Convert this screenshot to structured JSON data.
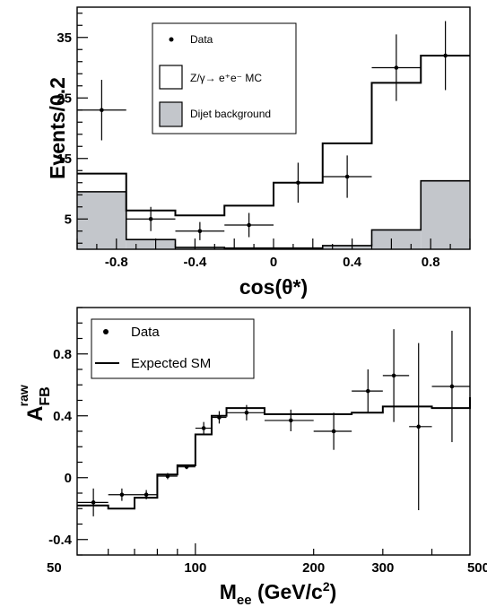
{
  "chart_data": [
    {
      "type": "histogram",
      "xlabel": "cos(θ*)",
      "ylabel": "Events/0.2",
      "xlim": [
        -1,
        1
      ],
      "ylim": [
        0,
        40
      ],
      "x_ticks": [
        "-0.8",
        "-0.4",
        "0",
        "0.4",
        "0.8"
      ],
      "y_ticks": [
        "5",
        "15",
        "25",
        "35"
      ],
      "bin_edges": [
        -1.0,
        -0.75,
        -0.5,
        -0.25,
        0.0,
        0.25,
        0.5,
        0.75,
        1.0
      ],
      "legend": {
        "data": "Data",
        "mc": "Z/γ→ e⁺e⁻ MC",
        "background": "Dijet background"
      },
      "series": [
        {
          "name": "Dijet background",
          "kind": "filled-step",
          "values": [
            9.5,
            1.6,
            0.3,
            0.2,
            0.2,
            0.6,
            3.2,
            11.3
          ]
        },
        {
          "name": "Z/γ→ e⁺e⁻ MC",
          "kind": "step",
          "values": [
            12.5,
            6.4,
            5.6,
            7.2,
            11.0,
            17.5,
            27.5,
            32.0
          ]
        },
        {
          "name": "Data",
          "kind": "points",
          "points": [
            {
              "x": -0.875,
              "y": 23,
              "err": 5
            },
            {
              "x": -0.625,
              "y": 5,
              "err": 2
            },
            {
              "x": -0.375,
              "y": 3,
              "err": 1.5
            },
            {
              "x": -0.125,
              "y": 4,
              "err": 2
            },
            {
              "x": 0.125,
              "y": 11,
              "err": 3.3
            },
            {
              "x": 0.375,
              "y": 12,
              "err": 3.5
            },
            {
              "x": 0.625,
              "y": 30,
              "err": 5.5
            },
            {
              "x": 0.875,
              "y": 32,
              "err": 5.7
            }
          ]
        }
      ]
    },
    {
      "type": "scatter",
      "xlabel": "M_ee (GeV/c²)",
      "ylabel": "A_FB^raw",
      "xscale": "log",
      "xlim": [
        50,
        500
      ],
      "ylim": [
        -0.5,
        1.1
      ],
      "x_ticks": [
        "50",
        "100",
        "200",
        "300",
        "500"
      ],
      "y_ticks": [
        "-0.4",
        "0",
        "0.4",
        "0.8"
      ],
      "legend": {
        "data": "Data",
        "expected": "Expected SM"
      },
      "series": [
        {
          "name": "Expected SM",
          "kind": "step",
          "bin_edges": [
            50,
            60,
            70,
            80,
            90,
            100,
            110,
            120,
            150,
            200,
            250,
            300,
            400,
            500
          ],
          "values": [
            -0.18,
            -0.2,
            -0.13,
            0.02,
            0.08,
            0.28,
            0.4,
            0.45,
            0.41,
            0.41,
            0.42,
            0.46,
            0.45,
            0.52
          ]
        },
        {
          "name": "Data",
          "kind": "points",
          "points": [
            {
              "x": 55,
              "x_lo": 50,
              "x_hi": 60,
              "y": -0.16,
              "err": 0.09
            },
            {
              "x": 65,
              "x_lo": 60,
              "x_hi": 70,
              "y": -0.11,
              "err": 0.04
            },
            {
              "x": 75,
              "x_lo": 70,
              "x_hi": 80,
              "y": -0.11,
              "err": 0.03
            },
            {
              "x": 85,
              "x_lo": 80,
              "x_hi": 90,
              "y": 0.01,
              "err": 0.02
            },
            {
              "x": 95,
              "x_lo": 90,
              "x_hi": 100,
              "y": 0.07,
              "err": 0.015
            },
            {
              "x": 105,
              "x_lo": 100,
              "x_hi": 110,
              "y": 0.32,
              "err": 0.04
            },
            {
              "x": 115,
              "x_lo": 110,
              "x_hi": 120,
              "y": 0.39,
              "err": 0.04
            },
            {
              "x": 135,
              "x_lo": 120,
              "x_hi": 150,
              "y": 0.42,
              "err": 0.05
            },
            {
              "x": 175,
              "x_lo": 150,
              "x_hi": 200,
              "y": 0.37,
              "err": 0.07
            },
            {
              "x": 225,
              "x_lo": 200,
              "x_hi": 250,
              "y": 0.3,
              "err": 0.12
            },
            {
              "x": 275,
              "x_lo": 250,
              "x_hi": 300,
              "y": 0.56,
              "err": 0.14
            },
            {
              "x": 320,
              "x_lo": 300,
              "x_hi": 350,
              "y": 0.66,
              "err": 0.3
            },
            {
              "x": 370,
              "x_lo": 350,
              "x_hi": 400,
              "y": 0.33,
              "err": 0.54
            },
            {
              "x": 450,
              "x_lo": 400,
              "x_hi": 500,
              "y": 0.59,
              "err": 0.36
            }
          ]
        }
      ]
    }
  ]
}
